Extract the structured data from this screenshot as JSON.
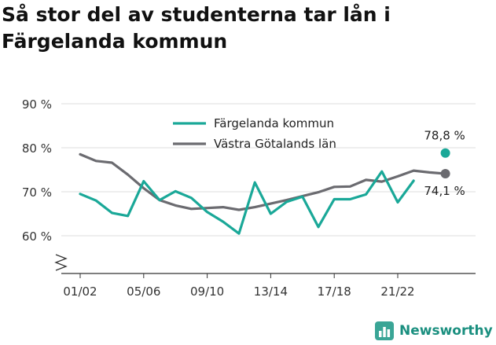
{
  "title": "Så stor del av studenterna tar lån i Färgelanda kommun",
  "brand": {
    "name": "Newsworthy",
    "icon": "newsworthy-logo-icon",
    "color": "#1a8f7f"
  },
  "chart_data": {
    "type": "line",
    "title": "Så stor del av studenterna tar lån i Färgelanda kommun",
    "xlabel": "",
    "ylabel": "",
    "x": [
      "01/02",
      "02/03",
      "03/04",
      "04/05",
      "05/06",
      "06/07",
      "07/08",
      "08/09",
      "09/10",
      "10/11",
      "11/12",
      "12/13",
      "13/14",
      "14/15",
      "15/16",
      "16/17",
      "17/18",
      "18/19",
      "19/20",
      "20/21",
      "21/22",
      "22/23",
      "23/24",
      "24/25"
    ],
    "x_tick_labels": [
      "01/02",
      "05/06",
      "09/10",
      "13/14",
      "17/18",
      "21/22"
    ],
    "y_ticks": [
      60,
      70,
      80,
      90
    ],
    "y_tick_labels": [
      "60 %",
      "70 %",
      "80 %",
      "90 %"
    ],
    "ylim": [
      51,
      92
    ],
    "axis_break": true,
    "grid": true,
    "legend": "top-center",
    "series": [
      {
        "name": "Färgelanda kommun",
        "color": "#1aa898",
        "values": [
          69.5,
          68,
          65.2,
          64.5,
          72.4,
          68.1,
          70.1,
          68.6,
          65.4,
          63.2,
          60.5,
          72.1,
          65,
          67.7,
          68.9,
          62,
          68.3,
          68.3,
          69.4,
          74.6,
          67.6,
          72.5,
          null,
          78.8
        ],
        "end_label": "78,8 %"
      },
      {
        "name": "Västra Götalands län",
        "color": "#6b6b70",
        "values": [
          78.5,
          77,
          76.6,
          73.9,
          70.8,
          68.1,
          66.9,
          66.1,
          66.3,
          66.5,
          65.9,
          66.5,
          67.3,
          68.1,
          69,
          69.9,
          71.1,
          71.2,
          72.7,
          72.3,
          73.5,
          74.8,
          74.4,
          74.1
        ],
        "end_label": "74,1 %"
      }
    ]
  }
}
